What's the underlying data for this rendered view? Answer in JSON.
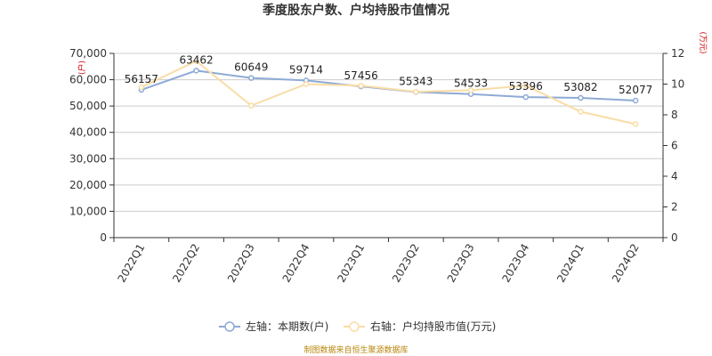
{
  "chart_data": {
    "type": "line",
    "title": "季度股东户数、户均持股市值情况",
    "categories": [
      "2022Q1",
      "2022Q2",
      "2022Q3",
      "2022Q4",
      "2023Q1",
      "2023Q2",
      "2023Q3",
      "2023Q4",
      "2024Q1",
      "2024Q2"
    ],
    "left_axis": {
      "unit": "(户)",
      "ylim": [
        0,
        70000
      ],
      "ticks": [
        "0",
        "10,000",
        "20,000",
        "30,000",
        "40,000",
        "50,000",
        "60,000",
        "70,000"
      ]
    },
    "right_axis": {
      "unit": "(万元)",
      "ylim": [
        0,
        12
      ],
      "ticks": [
        "0",
        "2",
        "4",
        "6",
        "8",
        "10",
        "12"
      ]
    },
    "series": [
      {
        "name": "左轴：本期数(户)",
        "axis": "left",
        "color": "#8eaad6",
        "values": [
          56157,
          63462,
          60649,
          59714,
          57456,
          55343,
          54533,
          53396,
          53082,
          52077
        ],
        "labels": [
          "56157",
          "63462",
          "60649",
          "59714",
          "57456",
          "55343",
          "54533",
          "53396",
          "53082",
          "52077"
        ]
      },
      {
        "name": "右轴：户均持股市值(万元)",
        "axis": "right",
        "color": "#f9dca6",
        "values": [
          9.8,
          11.5,
          8.6,
          10.0,
          9.9,
          9.5,
          9.6,
          9.9,
          8.2,
          7.4
        ]
      }
    ],
    "grid": true,
    "legend_position": "bottom"
  },
  "source_note": "制图数据来自恒生聚源数据库"
}
